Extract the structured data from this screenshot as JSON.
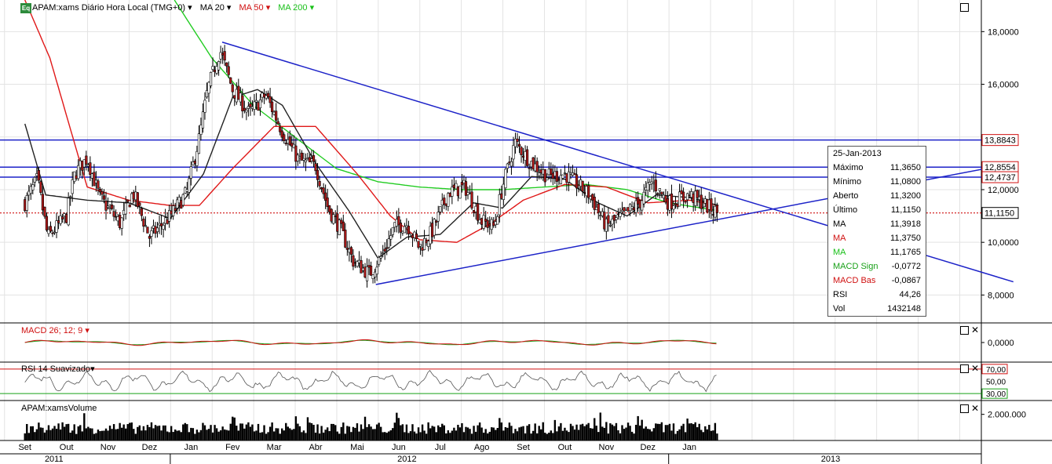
{
  "header": {
    "eq_badge": "Eq",
    "symbol_label": "APAM:xams Diário Hora Local (TMG+0)",
    "ma20_label": "MA 20",
    "ma50_label": "MA 50",
    "ma200_label": "MA 200"
  },
  "panels": {
    "macd_label": "MACD 26; 12; 9",
    "rsi_label": "RSI 14 Suavizado",
    "volume_label": "APAM:xamsVolume"
  },
  "infobox": {
    "date": "25-Jan-2013",
    "rows": [
      {
        "label": "Máximo",
        "value": "11,3650",
        "color": "#000000"
      },
      {
        "label": "Mínimo",
        "value": "11,0800",
        "color": "#000000"
      },
      {
        "label": "Aberto",
        "value": "11,3200",
        "color": "#000000"
      },
      {
        "label": "Último",
        "value": "11,1150",
        "color": "#000000"
      },
      {
        "label": "MA",
        "value": "11,3918",
        "color": "#000000"
      },
      {
        "label": "MA",
        "value": "11,3750",
        "color": "#d01010"
      },
      {
        "label": "MA",
        "value": "11,1765",
        "color": "#18c018"
      },
      {
        "label": "MACD Sign",
        "value": "-0,0772",
        "color": "#18a018"
      },
      {
        "label": "MACD Bas",
        "value": "-0,0867",
        "color": "#d01010"
      },
      {
        "label": "RSI",
        "value": "44,26",
        "color": "#000000"
      },
      {
        "label": "Vol",
        "value": "1432148",
        "color": "#000000"
      }
    ]
  },
  "chart_data": {
    "type": "candlestick",
    "price_axis": {
      "ticks": [
        "18,0000",
        "16,0000",
        "14,0000",
        "12,0000",
        "10,0000",
        "8,0000"
      ],
      "tick_values": [
        18,
        16,
        14,
        12,
        10,
        8
      ],
      "range": [
        7.0,
        19.2
      ]
    },
    "price_tags": [
      {
        "label": "13,8843",
        "value": 13.8843,
        "color": "#d01010"
      },
      {
        "label": "12,8554",
        "value": 12.8554,
        "color": "#d01010"
      },
      {
        "label": "12,4737",
        "value": 12.4737,
        "color": "#d01010"
      },
      {
        "label": "11,1150",
        "value": 11.115,
        "color": "#000000"
      }
    ],
    "horizontal_lines": [
      13.8843,
      12.8554,
      12.4737
    ],
    "last_price_line": 11.115,
    "months": [
      "Set",
      "Out",
      "Nov",
      "Dez",
      "Jan",
      "Fev",
      "Mar",
      "Abr",
      "Mai",
      "Jun",
      "Jul",
      "Ago",
      "Set",
      "Out",
      "Nov",
      "Dez",
      "Jan"
    ],
    "years": [
      "2011",
      "2012",
      "2013"
    ],
    "price_close_anchors": [
      {
        "m": 0,
        "v": 11.5
      },
      {
        "m": 0.3,
        "v": 12.4
      },
      {
        "m": 0.55,
        "v": 10.2
      },
      {
        "m": 1.0,
        "v": 11.0
      },
      {
        "m": 1.2,
        "v": 12.6
      },
      {
        "m": 1.5,
        "v": 13.2
      },
      {
        "m": 1.8,
        "v": 11.7
      },
      {
        "m": 2.3,
        "v": 10.7
      },
      {
        "m": 2.6,
        "v": 11.9
      },
      {
        "m": 3.0,
        "v": 10.2
      },
      {
        "m": 3.5,
        "v": 11.0
      },
      {
        "m": 3.9,
        "v": 11.9
      },
      {
        "m": 4.2,
        "v": 14.0
      },
      {
        "m": 4.4,
        "v": 15.8
      },
      {
        "m": 4.7,
        "v": 17.3
      },
      {
        "m": 5.0,
        "v": 15.8
      },
      {
        "m": 5.4,
        "v": 14.9
      },
      {
        "m": 5.8,
        "v": 15.6
      },
      {
        "m": 6.2,
        "v": 14.2
      },
      {
        "m": 6.6,
        "v": 13.1
      },
      {
        "m": 7.0,
        "v": 12.9
      },
      {
        "m": 7.3,
        "v": 11.3
      },
      {
        "m": 7.6,
        "v": 10.5
      },
      {
        "m": 7.9,
        "v": 9.3
      },
      {
        "m": 8.3,
        "v": 8.8
      },
      {
        "m": 8.6,
        "v": 9.5
      },
      {
        "m": 8.9,
        "v": 10.6
      },
      {
        "m": 9.2,
        "v": 10.7
      },
      {
        "m": 9.5,
        "v": 9.8
      },
      {
        "m": 9.8,
        "v": 10.4
      },
      {
        "m": 10.2,
        "v": 11.9
      },
      {
        "m": 10.6,
        "v": 12.1
      },
      {
        "m": 11.0,
        "v": 10.8
      },
      {
        "m": 11.3,
        "v": 10.6
      },
      {
        "m": 11.5,
        "v": 12.1
      },
      {
        "m": 11.8,
        "v": 13.8
      },
      {
        "m": 12.2,
        "v": 13.0
      },
      {
        "m": 12.6,
        "v": 12.5
      },
      {
        "m": 13.0,
        "v": 12.6
      },
      {
        "m": 13.3,
        "v": 12.2
      },
      {
        "m": 13.6,
        "v": 11.8
      },
      {
        "m": 14.0,
        "v": 10.6
      },
      {
        "m": 14.4,
        "v": 11.0
      },
      {
        "m": 14.8,
        "v": 11.5
      },
      {
        "m": 15.1,
        "v": 12.3
      },
      {
        "m": 15.5,
        "v": 11.5
      },
      {
        "m": 16.0,
        "v": 11.8
      },
      {
        "m": 16.5,
        "v": 11.3
      },
      {
        "m": 16.7,
        "v": 11.1
      }
    ],
    "ma20_anchors": [
      {
        "m": 0,
        "v": 14.5
      },
      {
        "m": 0.5,
        "v": 11.8
      },
      {
        "m": 1.5,
        "v": 11.6
      },
      {
        "m": 2.5,
        "v": 11.5
      },
      {
        "m": 3.5,
        "v": 10.9
      },
      {
        "m": 4.3,
        "v": 12.6
      },
      {
        "m": 5.0,
        "v": 15.5
      },
      {
        "m": 5.6,
        "v": 15.8
      },
      {
        "m": 6.2,
        "v": 15.2
      },
      {
        "m": 7.0,
        "v": 13.0
      },
      {
        "m": 7.8,
        "v": 11.2
      },
      {
        "m": 8.5,
        "v": 9.4
      },
      {
        "m": 9.2,
        "v": 10.2
      },
      {
        "m": 10.0,
        "v": 10.3
      },
      {
        "m": 10.8,
        "v": 11.5
      },
      {
        "m": 11.5,
        "v": 11.3
      },
      {
        "m": 12.2,
        "v": 12.5
      },
      {
        "m": 13.0,
        "v": 12.4
      },
      {
        "m": 13.8,
        "v": 11.5
      },
      {
        "m": 14.5,
        "v": 11.0
      },
      {
        "m": 15.2,
        "v": 11.8
      },
      {
        "m": 16.0,
        "v": 11.7
      },
      {
        "m": 16.7,
        "v": 11.4
      }
    ],
    "ma50_anchors": [
      {
        "m": 0,
        "v": 19.2
      },
      {
        "m": 0.6,
        "v": 17.0
      },
      {
        "m": 1.5,
        "v": 12.1
      },
      {
        "m": 2.5,
        "v": 11.6
      },
      {
        "m": 3.5,
        "v": 11.4
      },
      {
        "m": 4.2,
        "v": 11.4
      },
      {
        "m": 5.0,
        "v": 12.8
      },
      {
        "m": 6.0,
        "v": 14.4
      },
      {
        "m": 7.0,
        "v": 14.4
      },
      {
        "m": 8.0,
        "v": 12.6
      },
      {
        "m": 8.8,
        "v": 11.0
      },
      {
        "m": 9.5,
        "v": 10.1
      },
      {
        "m": 10.4,
        "v": 10.0
      },
      {
        "m": 11.2,
        "v": 10.7
      },
      {
        "m": 12.0,
        "v": 11.6
      },
      {
        "m": 13.0,
        "v": 12.2
      },
      {
        "m": 14.0,
        "v": 12.1
      },
      {
        "m": 15.0,
        "v": 11.5
      },
      {
        "m": 16.0,
        "v": 11.6
      },
      {
        "m": 16.7,
        "v": 11.4
      }
    ],
    "ma200_anchors": [
      {
        "m": 3.6,
        "v": 19.2
      },
      {
        "m": 4.5,
        "v": 17.0
      },
      {
        "m": 5.5,
        "v": 15.2
      },
      {
        "m": 6.5,
        "v": 14.0
      },
      {
        "m": 7.5,
        "v": 12.8
      },
      {
        "m": 8.5,
        "v": 12.3
      },
      {
        "m": 9.5,
        "v": 12.1
      },
      {
        "m": 10.5,
        "v": 12.0
      },
      {
        "m": 11.5,
        "v": 12.0
      },
      {
        "m": 12.5,
        "v": 12.1
      },
      {
        "m": 13.5,
        "v": 12.2
      },
      {
        "m": 14.5,
        "v": 12.0
      },
      {
        "m": 15.5,
        "v": 11.5
      },
      {
        "m": 16.7,
        "v": 11.2
      }
    ],
    "trendlines": [
      {
        "from": {
          "m": 4.75,
          "v": 17.6
        },
        "to": {
          "m": 23.8,
          "v": 8.5
        }
      },
      {
        "from": {
          "m": 8.45,
          "v": 8.4
        },
        "to": {
          "m": 23.8,
          "v": 13.0
        }
      }
    ],
    "macd": {
      "tick_label": "0,0000",
      "range": [
        -1,
        1
      ],
      "tick_value": 0,
      "signal_color": "#18a018",
      "base_color": "#d01010"
    },
    "rsi": {
      "ticks": [
        "70,00",
        "50,00",
        "30,00"
      ],
      "tick_values": [
        70,
        50,
        30
      ],
      "range": [
        20,
        80
      ]
    },
    "volume": {
      "tick_label": "2.000.000",
      "tick_value": 2000000,
      "range": [
        0,
        3000000
      ]
    }
  }
}
